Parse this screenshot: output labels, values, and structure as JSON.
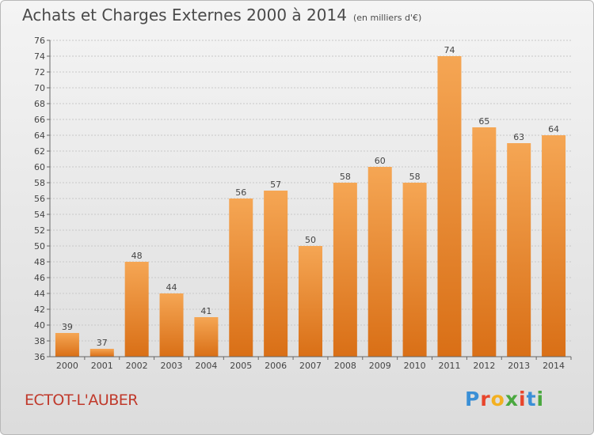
{
  "title": {
    "main": "Achats et Charges Externes 2000 à 2014",
    "unit": "(en milliers d'€)"
  },
  "footer": {
    "commune": "ECTOT-L'AUBER",
    "brand": "Proxiti"
  },
  "colors": {
    "bar_top": "#f5a654",
    "bar_bottom": "#d96f16",
    "commune": "#c0392b",
    "brand_letters": [
      "#3a8fd6",
      "#e8452c",
      "#f3b021",
      "#4aa83f",
      "#e8452c",
      "#3a8fd6",
      "#4aa83f"
    ]
  },
  "chart_data": {
    "type": "bar",
    "categories": [
      "2000",
      "2001",
      "2002",
      "2003",
      "2004",
      "2005",
      "2006",
      "2007",
      "2008",
      "2009",
      "2010",
      "2011",
      "2012",
      "2013",
      "2014"
    ],
    "values": [
      39,
      37,
      48,
      44,
      41,
      56,
      57,
      50,
      58,
      60,
      58,
      74,
      65,
      63,
      64
    ],
    "ylim": [
      36,
      76
    ],
    "ytick_step": 2,
    "grid": true,
    "data_labels": true,
    "title": "Achats et Charges Externes 2000 à 2014",
    "xlabel": "",
    "ylabel": ""
  }
}
